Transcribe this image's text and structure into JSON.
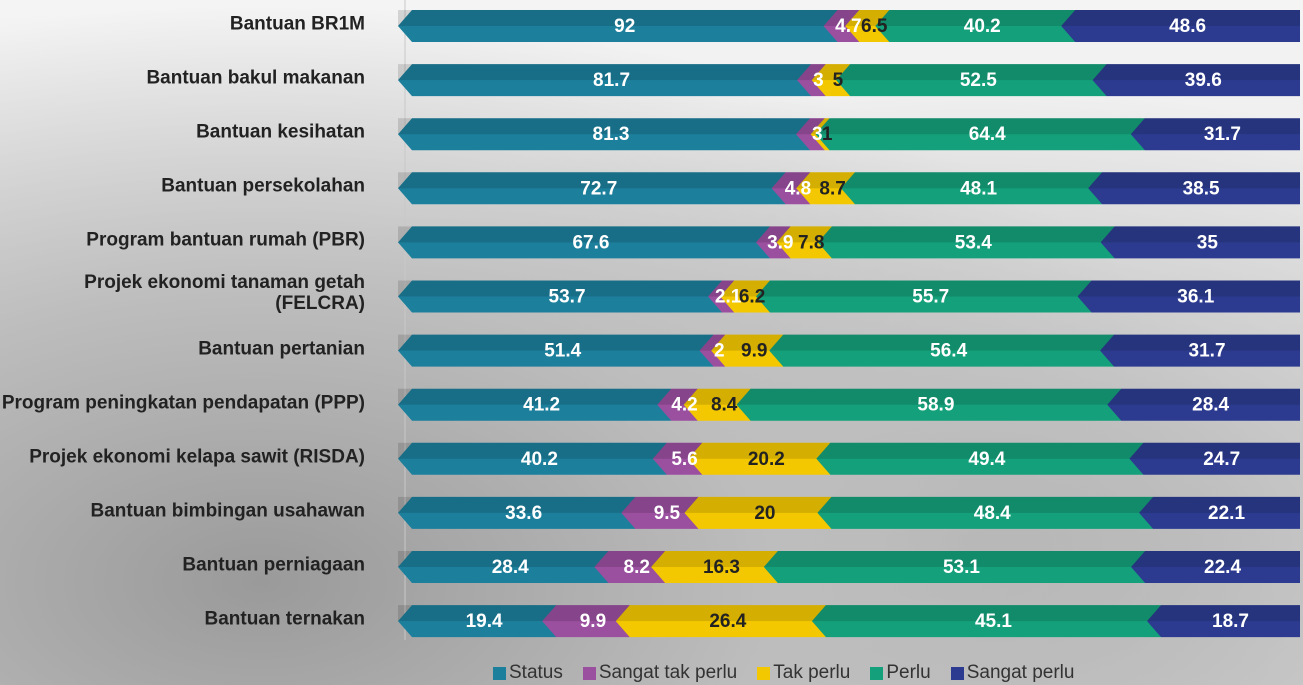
{
  "chart_data": {
    "type": "bar",
    "orientation": "horizontal",
    "stacking": "normalized",
    "categories": [
      "Bantuan BR1M",
      "Bantuan bakul makanan",
      "Bantuan kesihatan",
      "Bantuan persekolahan",
      "Program bantuan rumah (PBR)",
      "Projek ekonomi tanaman getah (FELCRA)",
      "Bantuan pertanian",
      "Program peningkatan pendapatan (PPP)",
      "Projek ekonomi kelapa sawit (RISDA)",
      "Bantuan bimbingan usahawan",
      "Bantuan perniagaan",
      "Bantuan ternakan"
    ],
    "series": [
      {
        "name": "Status",
        "color": "#1c7f9c",
        "values": [
          92,
          81.7,
          81.3,
          72.7,
          67.6,
          53.7,
          51.4,
          41.2,
          40.2,
          33.6,
          28.4,
          19.4
        ]
      },
      {
        "name": "Sangat tak perlu",
        "color": "#9a4f9f",
        "values": [
          4.7,
          3,
          3,
          4.8,
          3.9,
          2.1,
          2,
          4.2,
          5.6,
          9.5,
          8.2,
          9.9
        ]
      },
      {
        "name": "Tak perlu",
        "color": "#f4c800",
        "values": [
          6.5,
          5,
          1,
          8.7,
          7.8,
          6.2,
          9.9,
          8.4,
          20.2,
          20,
          16.3,
          26.4
        ]
      },
      {
        "name": "Perlu",
        "color": "#14a07a",
        "values": [
          40.2,
          52.5,
          64.4,
          48.1,
          53.4,
          55.7,
          56.4,
          58.9,
          49.4,
          48.4,
          53.1,
          45.1
        ]
      },
      {
        "name": "Sangat perlu",
        "color": "#2c3b90",
        "values": [
          48.6,
          39.6,
          31.7,
          38.5,
          35,
          36.1,
          31.7,
          28.4,
          24.7,
          22.1,
          22.4,
          18.7
        ]
      }
    ],
    "legend": "bottom"
  }
}
